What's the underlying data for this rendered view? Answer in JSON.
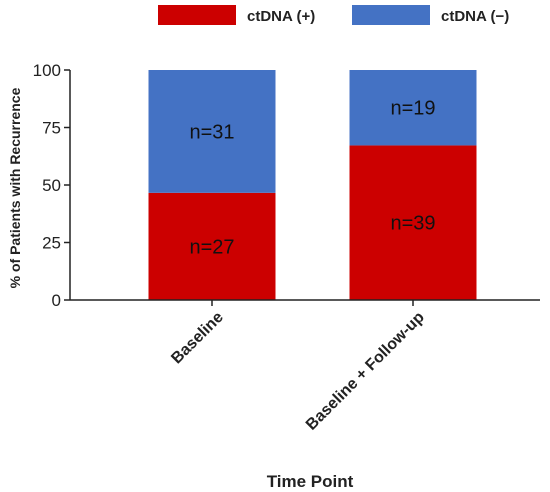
{
  "chart_data": {
    "type": "bar",
    "stacked": true,
    "categories": [
      "Baseline",
      "Baseline + Follow-up"
    ],
    "series": [
      {
        "name": "ctDNA (+)",
        "values": [
          46.6,
          67.2
        ],
        "labels": [
          "n=27",
          "n=39"
        ],
        "color": "#cc0000"
      },
      {
        "name": "ctDNA (−)",
        "values": [
          53.4,
          32.8
        ],
        "labels": [
          "n=31",
          "n=19"
        ],
        "color": "#4472c4"
      }
    ],
    "xlabel": "Time Point",
    "ylabel": "% of Patients with Recurrence",
    "ylim": [
      0,
      100
    ],
    "yticks": [
      0,
      25,
      50,
      75,
      100
    ],
    "legend": "top",
    "grid": false
  }
}
